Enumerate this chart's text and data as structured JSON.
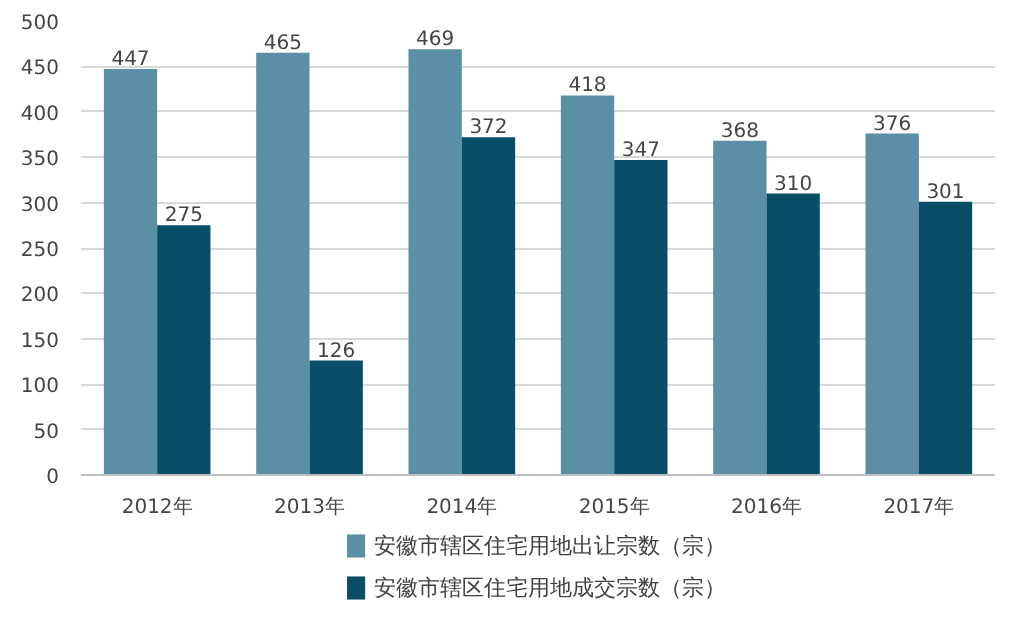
{
  "chart_data": {
    "type": "bar",
    "categories": [
      "2012年",
      "2013年",
      "2014年",
      "2015年",
      "2016年",
      "2017年"
    ],
    "series": [
      {
        "name": "安徽市辖区住宅用地出让宗数（宗）",
        "color": "#5b8fa6",
        "values": [
          447,
          465,
          469,
          418,
          368,
          376
        ]
      },
      {
        "name": "安徽市辖区住宅用地成交宗数（宗）",
        "color": "#0a4d66",
        "values": [
          275,
          126,
          372,
          347,
          310,
          301
        ]
      }
    ],
    "ylim": [
      0,
      500
    ],
    "yticks": [
      0,
      50,
      100,
      150,
      200,
      250,
      300,
      350,
      400,
      450,
      500
    ],
    "grid": "y",
    "legend": "bottom",
    "data_labels": true
  }
}
